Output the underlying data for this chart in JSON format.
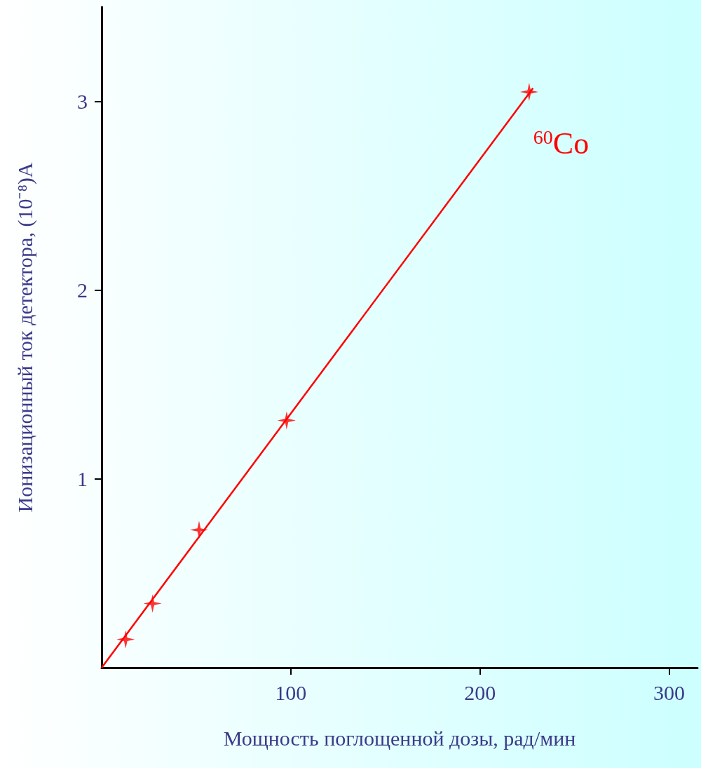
{
  "chart_data": {
    "type": "scatter",
    "xlabel": "Мощность поглощенной дозы, рад/мин",
    "ylabel": "Ионизационный ток детектора, (10⁻⁸)A",
    "xlim": [
      0,
      315
    ],
    "xticks": [
      100,
      200,
      300
    ],
    "ylim": [
      0,
      3.5
    ],
    "yticks": [
      1,
      2,
      3
    ],
    "grid": false,
    "marker": "star",
    "series": [
      {
        "color": "#ff0000",
        "x": [
          12.7,
          26.9,
          51.5,
          97.8,
          226
        ],
        "values": [
          0.15,
          0.34,
          0.73,
          1.31,
          3.05
        ]
      },
      {
        "type": "line",
        "color": "#ff0000",
        "marker": "none",
        "line_style": "solid",
        "x": [
          0,
          228
        ],
        "values": [
          0,
          3.07
        ]
      }
    ],
    "annotations": [
      "$^{60}$Co"
    ]
  }
}
